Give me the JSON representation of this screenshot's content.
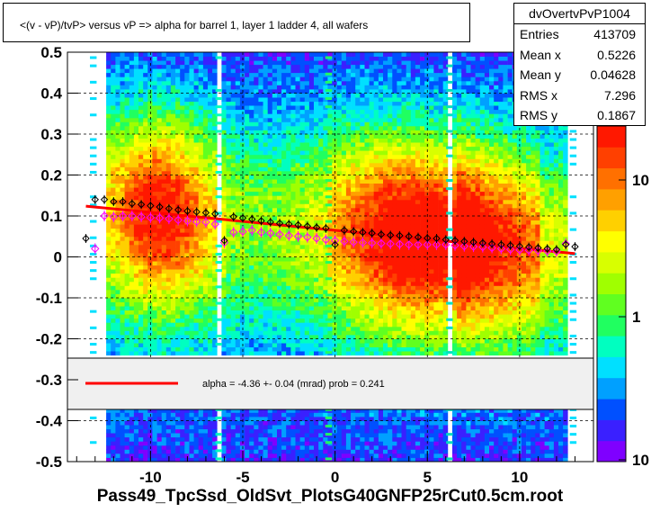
{
  "title": "<(v - vP)/tvP> versus   vP => alpha for barrel 1, layer 1 ladder 4, all wafers",
  "x_axis_title": "Pass49_TpcSsd_OldSvt_PlotsG40GNFP25rCut0.5cm.root",
  "stats": {
    "name": "dvOvertvPvP1004",
    "rows": [
      {
        "label": "Entries",
        "value": "413709"
      },
      {
        "label": "Mean x",
        "value": "0.5226"
      },
      {
        "label": "Mean y",
        "value": "0.04628"
      },
      {
        "label": "RMS x",
        "value": "7.296"
      },
      {
        "label": "RMS y",
        "value": "0.1867"
      }
    ]
  },
  "fit_legend": "alpha =   -4.36 +-  0.04 (mrad) prob = 0.241",
  "colors": {
    "fit_line": "#ff0000",
    "profile_black": "#000000",
    "profile_magenta": "#ff00ff"
  },
  "chart_data": {
    "type": "heatmap",
    "title": "<(v - vP)/tvP> versus   vP => alpha for barrel 1, layer 1 ladder 4, all wafers",
    "xlabel": "Pass49_TpcSsd_OldSvt_PlotsG40GNFP25rCut0.5cm.root",
    "ylabel": "",
    "xlim": [
      -14.5,
      14
    ],
    "ylim": [
      -0.5,
      0.5
    ],
    "x_ticks": [
      -10,
      -5,
      0,
      5,
      10
    ],
    "y_ticks": [
      -0.5,
      -0.4,
      -0.3,
      -0.2,
      -0.1,
      0,
      0.1,
      0.2,
      0.3,
      0.4,
      0.5
    ],
    "z_scale": "log",
    "z_tick_labels": [
      "10",
      "1",
      "10"
    ],
    "grid": true,
    "fit": {
      "x": [
        -13.5,
        13
      ],
      "y": [
        0.124,
        0.008
      ]
    },
    "profile_black": {
      "x": [
        -13.5,
        -13,
        -12.5,
        -12,
        -11.5,
        -11,
        -10.5,
        -10,
        -9.5,
        -9,
        -8.5,
        -8,
        -7.5,
        -7,
        -6.5,
        -6,
        -5.5,
        -5,
        -4.5,
        -4,
        -3.5,
        -3,
        -2.5,
        -2,
        -1.5,
        -1,
        -0.5,
        0,
        0.5,
        1,
        1.5,
        2,
        2.5,
        3,
        3.5,
        4,
        4.5,
        5,
        5.5,
        6,
        6.5,
        7,
        7.5,
        8,
        8.5,
        9,
        9.5,
        10,
        10.5,
        11,
        11.5,
        12,
        12.5,
        13
      ],
      "y": [
        0.045,
        0.14,
        0.14,
        0.135,
        0.135,
        0.13,
        0.128,
        0.125,
        0.122,
        0.118,
        0.115,
        0.112,
        0.11,
        0.108,
        0.105,
        0.04,
        0.098,
        0.095,
        0.092,
        0.088,
        0.085,
        0.082,
        0.08,
        0.078,
        0.075,
        0.072,
        0.07,
        0.03,
        0.065,
        0.062,
        0.06,
        0.058,
        0.055,
        0.053,
        0.052,
        0.05,
        0.048,
        0.046,
        0.045,
        0.042,
        0.04,
        0.038,
        0.036,
        0.034,
        0.032,
        0.03,
        0.028,
        0.026,
        0.024,
        0.022,
        0.02,
        0.018,
        0.03,
        0.025
      ]
    },
    "profile_magenta": {
      "x": [
        -13,
        -12.5,
        -12,
        -11.5,
        -11,
        -10.5,
        -10,
        -9.5,
        -9,
        -8.5,
        -8,
        -7.5,
        -7,
        -6.5,
        -6,
        -5.5,
        -5,
        -4.5,
        -4,
        -3.5,
        -3,
        -2.5,
        -2,
        -1.5,
        -1,
        -0.5,
        0,
        0.5,
        1,
        1.5,
        2,
        2.5,
        3,
        3.5,
        4,
        4.5,
        5,
        5.5,
        6,
        6.5,
        7,
        7.5,
        8,
        8.5,
        9,
        9.5,
        10,
        10.5,
        11,
        11.5,
        12,
        12.5
      ],
      "y": [
        0.02,
        0.1,
        0.098,
        0.1,
        0.1,
        0.098,
        0.096,
        0.095,
        0.093,
        0.09,
        0.088,
        0.086,
        0.085,
        0.08,
        0.035,
        0.06,
        0.062,
        0.065,
        0.06,
        0.058,
        0.055,
        0.052,
        0.05,
        0.048,
        0.045,
        0.042,
        0.04,
        0.038,
        0.036,
        0.035,
        0.034,
        0.033,
        0.032,
        0.031,
        0.03,
        0.03,
        0.03,
        0.03,
        0.03,
        0.028,
        0.026,
        0.025,
        0.024,
        0.022,
        0.02,
        0.018,
        0.017,
        0.016,
        0.015,
        0.014,
        0.013,
        0.032
      ]
    }
  }
}
